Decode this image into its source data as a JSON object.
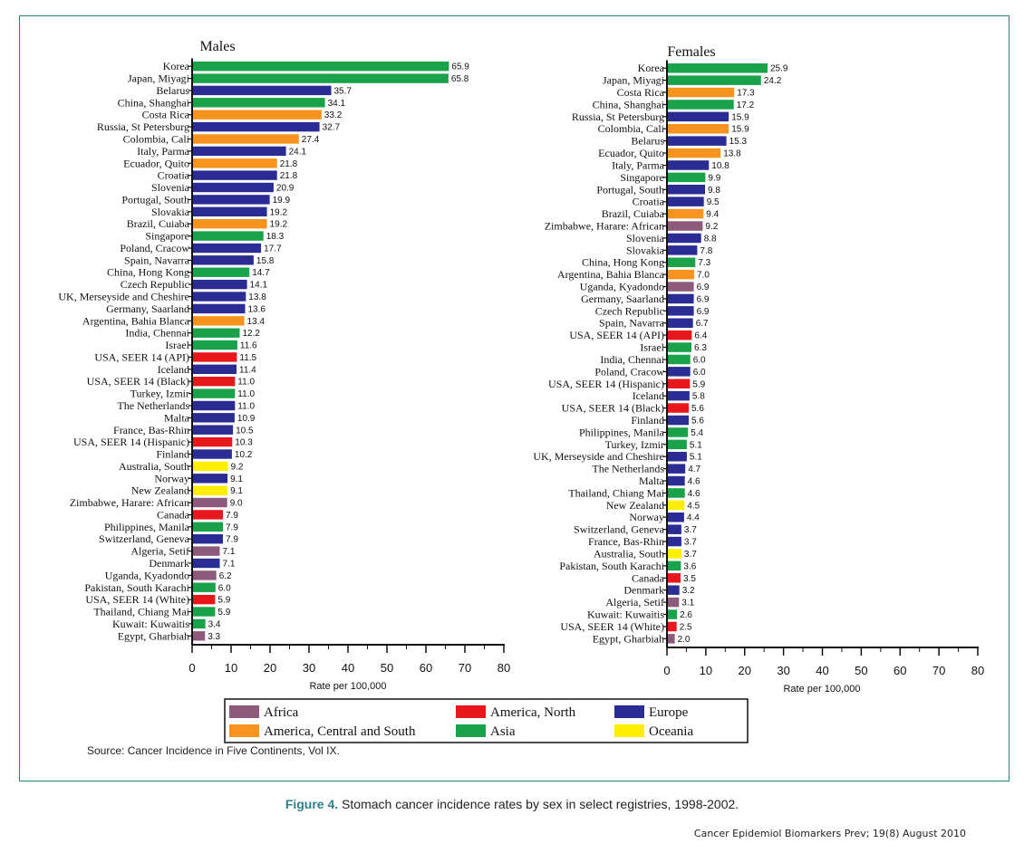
{
  "colors": {
    "Africa": "#8e5a7c",
    "America, North": "#e8171c",
    "America, Central and South": "#f7931e",
    "Asia": "#1aa24a",
    "Europe": "#2a2c94",
    "Oceania": "#ffee00"
  },
  "chart_data": [
    {
      "type": "bar",
      "orientation": "horizontal",
      "title": "Males",
      "xlabel": "Rate per 100,000",
      "xlim": [
        0,
        80
      ],
      "xticks": [
        "0",
        "10",
        "20",
        "30",
        "40",
        "50",
        "60",
        "70",
        "80"
      ],
      "bars": [
        {
          "label": "Korea",
          "value": 65.9,
          "value_label": "65.9",
          "region": "Asia"
        },
        {
          "label": "Japan, Miyagi",
          "value": 65.8,
          "value_label": "65.8",
          "region": "Asia"
        },
        {
          "label": "Belarus",
          "value": 35.7,
          "value_label": "35.7",
          "region": "Europe"
        },
        {
          "label": "China, Shanghai",
          "value": 34.1,
          "value_label": "34.1",
          "region": "Asia"
        },
        {
          "label": "Costa Rica",
          "value": 33.2,
          "value_label": "33.2",
          "region": "America, Central and South"
        },
        {
          "label": "Russia, St Petersburg",
          "value": 32.7,
          "value_label": "32.7",
          "region": "Europe"
        },
        {
          "label": "Colombia, Cali",
          "value": 27.4,
          "value_label": "27.4",
          "region": "America, Central and South"
        },
        {
          "label": "Italy, Parma",
          "value": 24.1,
          "value_label": "24.1",
          "region": "Europe"
        },
        {
          "label": "Ecuador, Quito",
          "value": 21.8,
          "value_label": "21.8",
          "region": "America, Central and South"
        },
        {
          "label": "Croatia",
          "value": 21.8,
          "value_label": "21.8",
          "region": "Europe"
        },
        {
          "label": "Slovenia",
          "value": 20.9,
          "value_label": "20.9",
          "region": "Europe"
        },
        {
          "label": "Portugal, South",
          "value": 19.9,
          "value_label": "19.9",
          "region": "Europe"
        },
        {
          "label": "Slovakia",
          "value": 19.2,
          "value_label": "19.2",
          "region": "Europe"
        },
        {
          "label": "Brazil, Cuiaba",
          "value": 19.2,
          "value_label": "19.2",
          "region": "America, Central and South"
        },
        {
          "label": "Singapore",
          "value": 18.3,
          "value_label": "18.3",
          "region": "Asia"
        },
        {
          "label": "Poland, Cracow",
          "value": 17.7,
          "value_label": "17.7",
          "region": "Europe"
        },
        {
          "label": "Spain, Navarra",
          "value": 15.8,
          "value_label": "15.8",
          "region": "Europe"
        },
        {
          "label": "China, Hong Kong",
          "value": 14.7,
          "value_label": "14.7",
          "region": "Asia"
        },
        {
          "label": "Czech Republic",
          "value": 14.1,
          "value_label": "14.1",
          "region": "Europe"
        },
        {
          "label": "UK, Merseyside and Cheshire",
          "value": 13.8,
          "value_label": "13.8",
          "region": "Europe"
        },
        {
          "label": "Germany, Saarland",
          "value": 13.6,
          "value_label": "13.6",
          "region": "Europe"
        },
        {
          "label": "Argentina, Bahia Blanca",
          "value": 13.4,
          "value_label": "13.4",
          "region": "America, Central and South"
        },
        {
          "label": "India, Chennai",
          "value": 12.2,
          "value_label": "12.2",
          "region": "Asia"
        },
        {
          "label": "Israel",
          "value": 11.6,
          "value_label": "11.6",
          "region": "Asia"
        },
        {
          "label": "USA, SEER 14 (API)",
          "value": 11.5,
          "value_label": "11.5",
          "region": "America, North"
        },
        {
          "label": "Iceland",
          "value": 11.4,
          "value_label": "11.4",
          "region": "Europe"
        },
        {
          "label": "USA, SEER 14 (Black)",
          "value": 11.0,
          "value_label": "11.0",
          "region": "America, North"
        },
        {
          "label": "Turkey, Izmir",
          "value": 11.0,
          "value_label": "11.0",
          "region": "Asia"
        },
        {
          "label": "The Netherlands",
          "value": 11.0,
          "value_label": "11.0",
          "region": "Europe"
        },
        {
          "label": "Malta",
          "value": 10.9,
          "value_label": "10.9",
          "region": "Europe"
        },
        {
          "label": "France, Bas-Rhin",
          "value": 10.5,
          "value_label": "10.5",
          "region": "Europe"
        },
        {
          "label": "USA, SEER 14 (Hispanic)",
          "value": 10.3,
          "value_label": "10.3",
          "region": "America, North"
        },
        {
          "label": "Finland",
          "value": 10.2,
          "value_label": "10.2",
          "region": "Europe"
        },
        {
          "label": "Australia, South",
          "value": 9.2,
          "value_label": "9.2",
          "region": "Oceania"
        },
        {
          "label": "Norway",
          "value": 9.1,
          "value_label": "9.1",
          "region": "Europe"
        },
        {
          "label": "New Zealand",
          "value": 9.1,
          "value_label": "9.1",
          "region": "Oceania"
        },
        {
          "label": "Zimbabwe, Harare: African",
          "value": 9.0,
          "value_label": "9.0",
          "region": "Africa"
        },
        {
          "label": "Canada",
          "value": 7.9,
          "value_label": "7.9",
          "region": "America, North"
        },
        {
          "label": "Philippines, Manila",
          "value": 7.9,
          "value_label": "7.9",
          "region": "Asia"
        },
        {
          "label": "Switzerland, Geneva",
          "value": 7.9,
          "value_label": "7.9",
          "region": "Europe"
        },
        {
          "label": "Algeria, Setif",
          "value": 7.1,
          "value_label": "7.1",
          "region": "Africa"
        },
        {
          "label": "Denmark",
          "value": 7.1,
          "value_label": "7.1",
          "region": "Europe"
        },
        {
          "label": "Uganda, Kyadondo",
          "value": 6.2,
          "value_label": "6.2",
          "region": "Africa"
        },
        {
          "label": "Pakistan, South Karachi",
          "value": 6.0,
          "value_label": "6.0",
          "region": "Asia"
        },
        {
          "label": "USA, SEER 14 (White)",
          "value": 5.9,
          "value_label": "5.9",
          "region": "America, North"
        },
        {
          "label": "Thailand, Chiang Mai",
          "value": 5.9,
          "value_label": "5.9",
          "region": "Asia"
        },
        {
          "label": "Kuwait: Kuwaitis",
          "value": 3.4,
          "value_label": "3.4",
          "region": "Asia"
        },
        {
          "label": "Egypt, Gharbiah",
          "value": 3.3,
          "value_label": "3.3",
          "region": "Africa"
        }
      ]
    },
    {
      "type": "bar",
      "orientation": "horizontal",
      "title": "Females",
      "xlabel": "Rate per 100,000",
      "xlim": [
        0,
        80
      ],
      "xticks": [
        "0",
        "10",
        "20",
        "30",
        "40",
        "50",
        "60",
        "70",
        "80"
      ],
      "bars": [
        {
          "label": "Korea",
          "value": 25.9,
          "value_label": "25.9",
          "region": "Asia"
        },
        {
          "label": "Japan, Miyagi",
          "value": 24.2,
          "value_label": "24.2",
          "region": "Asia"
        },
        {
          "label": "Costa Rica",
          "value": 17.3,
          "value_label": "17.3",
          "region": "America, Central and South"
        },
        {
          "label": "China, Shanghai",
          "value": 17.2,
          "value_label": "17.2",
          "region": "Asia"
        },
        {
          "label": "Russia, St Petersburg",
          "value": 15.9,
          "value_label": "15.9",
          "region": "Europe"
        },
        {
          "label": "Colombia, Cali",
          "value": 15.9,
          "value_label": "15.9",
          "region": "America, Central and South"
        },
        {
          "label": "Belarus",
          "value": 15.3,
          "value_label": "15.3",
          "region": "Europe"
        },
        {
          "label": "Ecuador, Quito",
          "value": 13.8,
          "value_label": "13.8",
          "region": "America, Central and South"
        },
        {
          "label": "Italy, Parma",
          "value": 10.8,
          "value_label": "10.8",
          "region": "Europe"
        },
        {
          "label": "Singapore",
          "value": 9.9,
          "value_label": "9.9",
          "region": "Asia"
        },
        {
          "label": "Portugal, South",
          "value": 9.8,
          "value_label": "9.8",
          "region": "Europe"
        },
        {
          "label": "Croatia",
          "value": 9.5,
          "value_label": "9.5",
          "region": "Europe"
        },
        {
          "label": "Brazil, Cuiaba",
          "value": 9.4,
          "value_label": "9.4",
          "region": "America, Central and South"
        },
        {
          "label": "Zimbabwe, Harare: African",
          "value": 9.2,
          "value_label": "9.2",
          "region": "Africa"
        },
        {
          "label": "Slovenia",
          "value": 8.8,
          "value_label": "8.8",
          "region": "Europe"
        },
        {
          "label": "Slovakia",
          "value": 7.8,
          "value_label": "7.8",
          "region": "Europe"
        },
        {
          "label": "China, Hong Kong",
          "value": 7.3,
          "value_label": "7.3",
          "region": "Asia"
        },
        {
          "label": "Argentina, Bahia Blanca",
          "value": 7.0,
          "value_label": "7.0",
          "region": "America, Central and South"
        },
        {
          "label": "Uganda, Kyadondo",
          "value": 6.9,
          "value_label": "6.9",
          "region": "Africa"
        },
        {
          "label": "Germany, Saarland",
          "value": 6.9,
          "value_label": "6.9",
          "region": "Europe"
        },
        {
          "label": "Czech Republic",
          "value": 6.9,
          "value_label": "6.9",
          "region": "Europe"
        },
        {
          "label": "Spain, Navarra",
          "value": 6.7,
          "value_label": "6.7",
          "region": "Europe"
        },
        {
          "label": "USA, SEER 14 (API)",
          "value": 6.4,
          "value_label": "6.4",
          "region": "America, North"
        },
        {
          "label": "Israel",
          "value": 6.3,
          "value_label": "6.3",
          "region": "Asia"
        },
        {
          "label": "India, Chennai",
          "value": 6.0,
          "value_label": "6.0",
          "region": "Asia"
        },
        {
          "label": "Poland, Cracow",
          "value": 6.0,
          "value_label": "6.0",
          "region": "Europe"
        },
        {
          "label": "USA, SEER 14 (Hispanic)",
          "value": 5.9,
          "value_label": "5.9",
          "region": "America, North"
        },
        {
          "label": "Iceland",
          "value": 5.8,
          "value_label": "5.8",
          "region": "Europe"
        },
        {
          "label": "USA, SEER 14 (Black)",
          "value": 5.6,
          "value_label": "5.6",
          "region": "America, North"
        },
        {
          "label": "Finland",
          "value": 5.6,
          "value_label": "5.6",
          "region": "Europe"
        },
        {
          "label": "Philippines, Manila",
          "value": 5.4,
          "value_label": "5.4",
          "region": "Asia"
        },
        {
          "label": "Turkey, Izmir",
          "value": 5.1,
          "value_label": "5.1",
          "region": "Asia"
        },
        {
          "label": "UK, Merseyside and Cheshire",
          "value": 5.1,
          "value_label": "5.1",
          "region": "Europe"
        },
        {
          "label": "The Netherlands",
          "value": 4.7,
          "value_label": "4.7",
          "region": "Europe"
        },
        {
          "label": "Malta",
          "value": 4.6,
          "value_label": "4.6",
          "region": "Europe"
        },
        {
          "label": "Thailand, Chiang Mai",
          "value": 4.6,
          "value_label": "4.6",
          "region": "Asia"
        },
        {
          "label": "New Zealand",
          "value": 4.5,
          "value_label": "4.5",
          "region": "Oceania"
        },
        {
          "label": "Norway",
          "value": 4.4,
          "value_label": "4.4",
          "region": "Europe"
        },
        {
          "label": "Switzerland, Geneva",
          "value": 3.7,
          "value_label": "3.7",
          "region": "Europe"
        },
        {
          "label": "France, Bas-Rhin",
          "value": 3.7,
          "value_label": "3.7",
          "region": "Europe"
        },
        {
          "label": "Australia, South",
          "value": 3.7,
          "value_label": "3.7",
          "region": "Oceania"
        },
        {
          "label": "Pakistan, South Karachi",
          "value": 3.6,
          "value_label": "3.6",
          "region": "Asia"
        },
        {
          "label": "Canada",
          "value": 3.5,
          "value_label": "3.5",
          "region": "America, North"
        },
        {
          "label": "Denmark",
          "value": 3.2,
          "value_label": "3.2",
          "region": "Europe"
        },
        {
          "label": "Algeria, Setif",
          "value": 3.1,
          "value_label": "3.1",
          "region": "Africa"
        },
        {
          "label": "Kuwait: Kuwaitis",
          "value": 2.6,
          "value_label": "2.6",
          "region": "Asia"
        },
        {
          "label": "USA, SEER 14 (White)",
          "value": 2.5,
          "value_label": "2.5",
          "region": "America, North"
        },
        {
          "label": "Egypt, Gharbiah",
          "value": 2.0,
          "value_label": "2.0",
          "region": "Africa"
        }
      ]
    }
  ],
  "legend": {
    "entries": [
      {
        "label": "Africa",
        "region": "Africa"
      },
      {
        "label": "America, North",
        "region": "America, North"
      },
      {
        "label": "Europe",
        "region": "Europe"
      },
      {
        "label": "America, Central and South",
        "region": "America, Central and South"
      },
      {
        "label": "Asia",
        "region": "Asia"
      },
      {
        "label": "Oceania",
        "region": "Oceania"
      }
    ]
  },
  "source": "Source: Cancer Incidence in Five Continents, Vol IX.",
  "caption": {
    "figure": "Figure 4.",
    "text": " Stomach cancer incidence rates by sex in select registries, 1998-2002."
  },
  "journal": "Cancer Epidemiol Biomarkers Prev; 19(8) August 2010"
}
